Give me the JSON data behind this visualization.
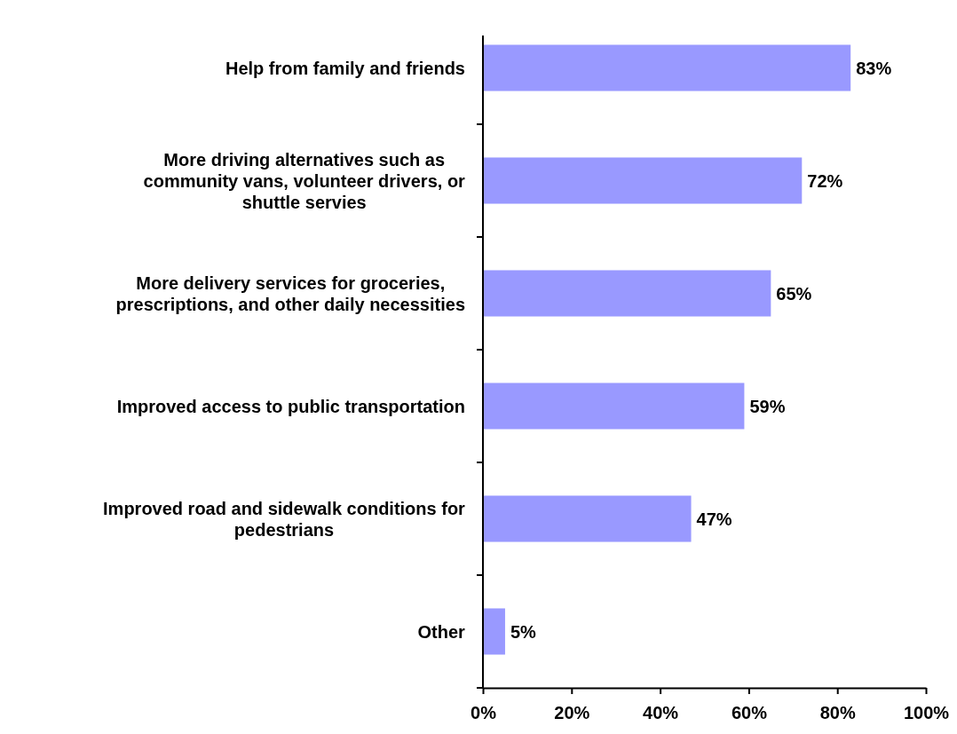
{
  "chart_data": {
    "type": "bar",
    "orientation": "horizontal",
    "categories": [
      "Help from family and friends",
      "More driving alternatives such as\ncommunity vans, volunteer drivers, or\nshuttle servies",
      "More delivery services for groceries,\nprescriptions, and other daily necessities",
      "Improved access to public transportation",
      "Improved road and sidewalk conditions for\npedestrians",
      "Other"
    ],
    "values": [
      83,
      72,
      65,
      59,
      47,
      5
    ],
    "value_labels": [
      "83%",
      "72%",
      "65%",
      "59%",
      "47%",
      "5%"
    ],
    "color": "#9999ff",
    "xlim": [
      0,
      100
    ],
    "xticks": [
      {
        "value": 0,
        "label": "0%"
      },
      {
        "value": 20,
        "label": "20%"
      },
      {
        "value": 40,
        "label": "40%"
      },
      {
        "value": 60,
        "label": "60%"
      },
      {
        "value": 80,
        "label": "80%"
      },
      {
        "value": 100,
        "label": "100%"
      }
    ],
    "grid": false
  }
}
